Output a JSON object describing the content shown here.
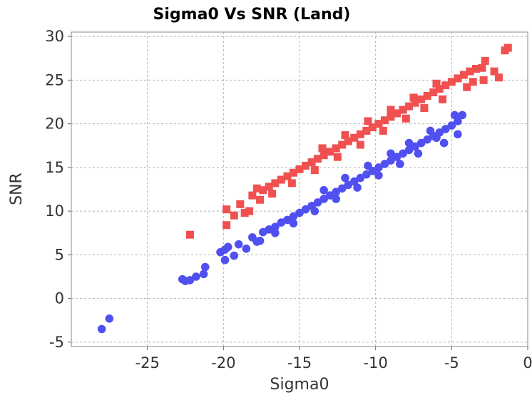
{
  "chart_data": {
    "type": "scatter",
    "title": "Sigma0 Vs SNR (Land)",
    "xlabel": "Sigma0",
    "ylabel": "SNR",
    "xlim": [
      -30,
      0
    ],
    "ylim": [
      -5.5,
      30.5
    ],
    "xticks": [
      -25,
      -20,
      -15,
      -10,
      -5,
      0
    ],
    "yticks": [
      -5,
      0,
      5,
      10,
      15,
      20,
      25,
      30
    ],
    "x_tick_labels": [
      "-25",
      "-20",
      "-15",
      "-10",
      "-5",
      "0"
    ],
    "y_tick_labels": [
      "-5",
      "0",
      "5",
      "10",
      "15",
      "20",
      "25",
      "30"
    ],
    "grid": true,
    "legend": "none",
    "series": [
      {
        "marker": "square",
        "color": "#f05050",
        "points": [
          [
            -22.2,
            7.3
          ],
          [
            -19.8,
            8.4
          ],
          [
            -19.8,
            10.2
          ],
          [
            -19.3,
            9.5
          ],
          [
            -18.9,
            10.8
          ],
          [
            -18.6,
            9.8
          ],
          [
            -18.3,
            10.0
          ],
          [
            -18.1,
            11.8
          ],
          [
            -17.8,
            12.6
          ],
          [
            -17.4,
            12.4
          ],
          [
            -17.0,
            12.8
          ],
          [
            -16.6,
            13.2
          ],
          [
            -16.2,
            13.6
          ],
          [
            -15.8,
            14.0
          ],
          [
            -15.4,
            14.4
          ],
          [
            -15.0,
            14.8
          ],
          [
            -14.6,
            15.2
          ],
          [
            -14.2,
            15.6
          ],
          [
            -13.8,
            16.0
          ],
          [
            -13.4,
            16.4
          ],
          [
            -13.0,
            16.8
          ],
          [
            -12.6,
            17.2
          ],
          [
            -12.2,
            17.6
          ],
          [
            -11.8,
            18.0
          ],
          [
            -11.4,
            18.4
          ],
          [
            -11.0,
            18.8
          ],
          [
            -10.6,
            19.2
          ],
          [
            -10.2,
            19.6
          ],
          [
            -9.8,
            20.0
          ],
          [
            -9.4,
            20.4
          ],
          [
            -9.0,
            20.8
          ],
          [
            -8.6,
            21.2
          ],
          [
            -8.2,
            21.6
          ],
          [
            -7.8,
            22.0
          ],
          [
            -7.4,
            22.4
          ],
          [
            -7.0,
            22.8
          ],
          [
            -6.6,
            23.2
          ],
          [
            -6.2,
            23.6
          ],
          [
            -5.8,
            24.0
          ],
          [
            -5.4,
            24.4
          ],
          [
            -5.0,
            24.8
          ],
          [
            -4.6,
            25.2
          ],
          [
            -4.2,
            25.6
          ],
          [
            -3.8,
            26.0
          ],
          [
            -3.4,
            26.3
          ],
          [
            -3.0,
            26.4
          ],
          [
            -2.8,
            27.2
          ],
          [
            -2.2,
            26.0
          ],
          [
            -1.9,
            25.3
          ],
          [
            -1.5,
            28.4
          ],
          [
            -1.3,
            28.7
          ],
          [
            -2.9,
            25.0
          ],
          [
            -4.0,
            24.2
          ],
          [
            -3.6,
            24.8
          ],
          [
            -5.6,
            22.8
          ],
          [
            -6.8,
            21.8
          ],
          [
            -8.0,
            20.6
          ],
          [
            -9.5,
            19.2
          ],
          [
            -11.0,
            17.6
          ],
          [
            -12.5,
            16.2
          ],
          [
            -14.0,
            14.7
          ],
          [
            -15.5,
            13.2
          ],
          [
            -16.8,
            12.0
          ],
          [
            -17.6,
            11.3
          ],
          [
            -10.5,
            20.3
          ],
          [
            -12.0,
            18.7
          ],
          [
            -13.5,
            17.2
          ],
          [
            -7.5,
            23.0
          ],
          [
            -6.0,
            24.6
          ],
          [
            -9.0,
            21.6
          ]
        ]
      },
      {
        "marker": "circle",
        "color": "#5050f0",
        "points": [
          [
            -28.0,
            -3.5
          ],
          [
            -27.5,
            -2.3
          ],
          [
            -22.7,
            2.2
          ],
          [
            -22.5,
            2.0
          ],
          [
            -22.2,
            2.1
          ],
          [
            -21.8,
            2.5
          ],
          [
            -21.3,
            2.8
          ],
          [
            -21.2,
            3.6
          ],
          [
            -20.2,
            5.3
          ],
          [
            -19.9,
            5.6
          ],
          [
            -19.7,
            5.9
          ],
          [
            -19.9,
            4.4
          ],
          [
            -19.3,
            4.9
          ],
          [
            -19.0,
            6.2
          ],
          [
            -18.5,
            5.7
          ],
          [
            -18.1,
            7.0
          ],
          [
            -17.8,
            6.5
          ],
          [
            -17.4,
            7.6
          ],
          [
            -17.0,
            7.9
          ],
          [
            -16.6,
            8.2
          ],
          [
            -16.2,
            8.7
          ],
          [
            -15.8,
            9.0
          ],
          [
            -15.4,
            9.4
          ],
          [
            -15.0,
            9.8
          ],
          [
            -14.6,
            10.2
          ],
          [
            -14.2,
            10.6
          ],
          [
            -13.8,
            11.0
          ],
          [
            -13.4,
            11.4
          ],
          [
            -13.0,
            11.8
          ],
          [
            -12.6,
            12.2
          ],
          [
            -12.2,
            12.6
          ],
          [
            -11.8,
            13.0
          ],
          [
            -11.4,
            13.4
          ],
          [
            -11.0,
            13.8
          ],
          [
            -10.6,
            14.2
          ],
          [
            -10.2,
            14.6
          ],
          [
            -9.8,
            15.0
          ],
          [
            -9.4,
            15.4
          ],
          [
            -9.0,
            15.8
          ],
          [
            -8.6,
            16.2
          ],
          [
            -8.2,
            16.6
          ],
          [
            -7.8,
            17.0
          ],
          [
            -7.4,
            17.4
          ],
          [
            -7.0,
            17.8
          ],
          [
            -6.6,
            18.2
          ],
          [
            -6.2,
            18.6
          ],
          [
            -5.8,
            19.0
          ],
          [
            -5.4,
            19.4
          ],
          [
            -5.0,
            19.8
          ],
          [
            -4.6,
            20.3
          ],
          [
            -4.3,
            21.0
          ],
          [
            -4.6,
            18.8
          ],
          [
            -5.5,
            17.8
          ],
          [
            -6.0,
            18.4
          ],
          [
            -7.2,
            16.6
          ],
          [
            -8.4,
            15.4
          ],
          [
            -9.8,
            14.1
          ],
          [
            -11.2,
            12.7
          ],
          [
            -12.6,
            11.4
          ],
          [
            -14.0,
            10.0
          ],
          [
            -15.4,
            8.6
          ],
          [
            -16.6,
            7.5
          ],
          [
            -17.6,
            6.6
          ],
          [
            -10.5,
            15.2
          ],
          [
            -12.0,
            13.8
          ],
          [
            -13.4,
            12.4
          ],
          [
            -7.8,
            17.8
          ],
          [
            -6.4,
            19.2
          ],
          [
            -9.0,
            16.6
          ],
          [
            -4.8,
            21.0
          ]
        ]
      }
    ]
  }
}
